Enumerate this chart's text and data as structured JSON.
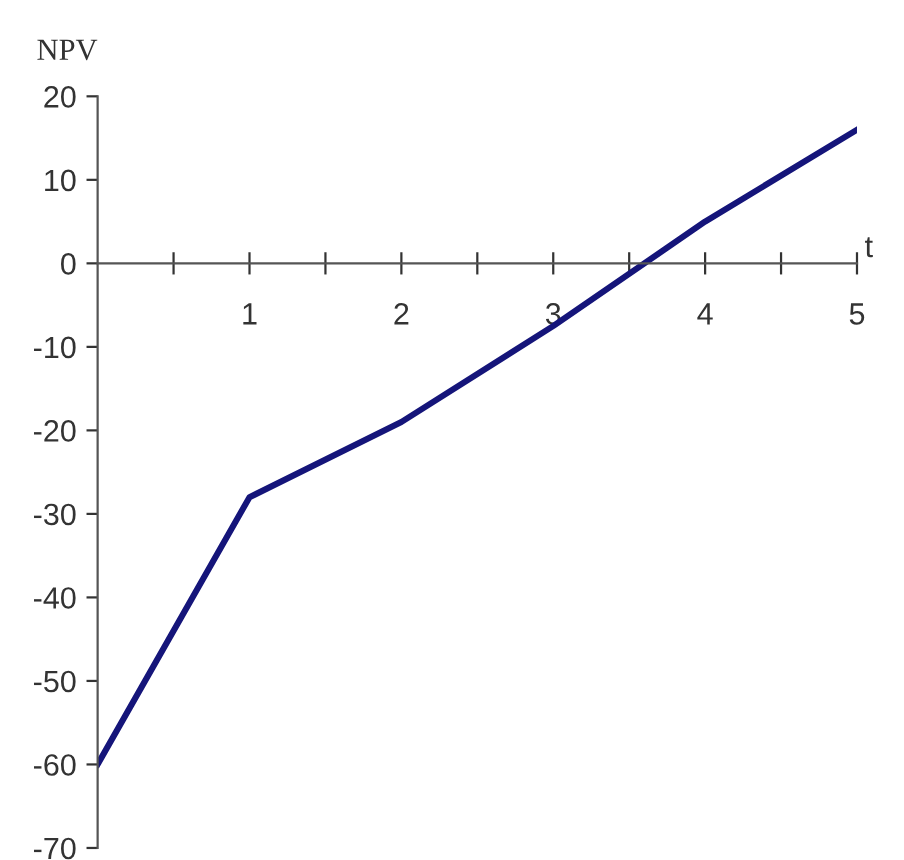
{
  "chart_data": {
    "type": "line",
    "xlabel": "t",
    "ylabel": "NPV",
    "x": [
      0,
      1,
      2,
      3,
      4,
      5
    ],
    "series": [
      {
        "color": "#15157a",
        "values": [
          -60,
          -28,
          -19,
          -7.5,
          5,
          16
        ]
      }
    ],
    "xlim": [
      0,
      5
    ],
    "ylim": [
      -70,
      20
    ],
    "xticks": [
      {
        "value": 0.5,
        "label": null
      },
      1,
      {
        "value": 1.5,
        "label": null
      },
      2,
      {
        "value": 2.5,
        "label": null
      },
      3,
      {
        "value": 3.5,
        "label": null
      },
      4,
      {
        "value": 4.5,
        "label": null
      },
      5
    ],
    "yticks": [
      -70,
      -60,
      -50,
      -40,
      -30,
      -20,
      -10,
      0,
      10,
      20
    ],
    "grid": false,
    "legend": false,
    "marker": "none",
    "line_style": "solid"
  }
}
